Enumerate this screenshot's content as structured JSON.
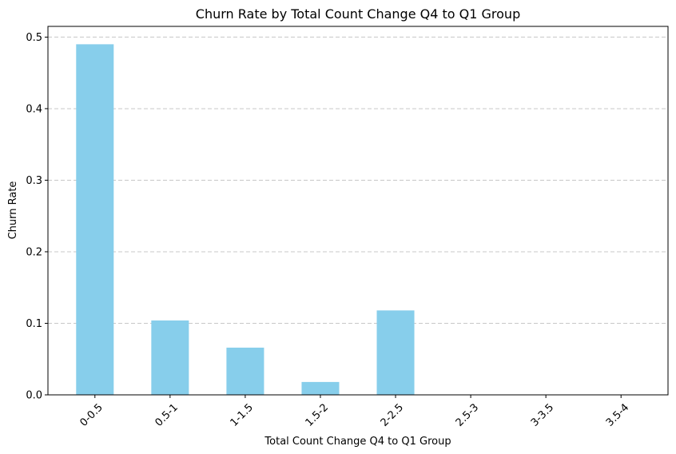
{
  "chart_data": {
    "type": "bar",
    "title": "Churn Rate by Total Count Change Q4 to Q1 Group",
    "xlabel": "Total Count Change Q4 to Q1 Group",
    "ylabel": "Churn Rate",
    "categories": [
      "0-0.5",
      "0.5-1",
      "1-1.5",
      "1.5-2",
      "2-2.5",
      "2.5-3",
      "3-3.5",
      "3.5-4"
    ],
    "values": [
      0.49,
      0.104,
      0.066,
      0.018,
      0.118,
      0.0,
      0.0,
      0.0
    ],
    "ylim": [
      0,
      0.515
    ],
    "yticks": [
      0.0,
      0.1,
      0.2,
      0.3,
      0.4,
      0.5
    ],
    "ytick_labels": [
      "0.0",
      "0.1",
      "0.2",
      "0.3",
      "0.4",
      "0.5"
    ],
    "grid": "y-dashed",
    "bar_color": "#87ceeb",
    "grid_color": "#c8c8c8"
  }
}
